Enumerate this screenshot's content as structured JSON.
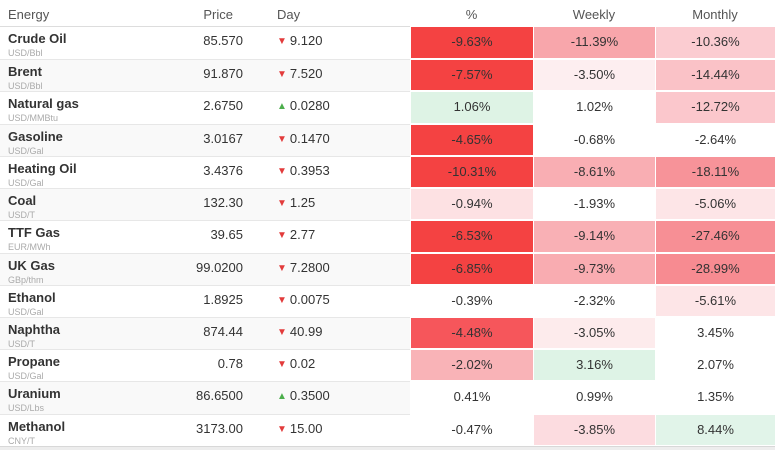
{
  "icons": {
    "up": "▲",
    "down": "▼"
  },
  "palette": {
    "full_red": "#f44242",
    "light_green": "#def3e5",
    "stripe_gray": "#f9f9f9",
    "down_triangle_red": "#e23b3b",
    "up_triangle_green": "#4cae4c"
  },
  "table": {
    "headers": [
      "Energy",
      "Price",
      "Day",
      "%",
      "Weekly",
      "Monthly"
    ],
    "rows": [
      {
        "name": "Crude Oil",
        "unit": "USD/Bbl",
        "price": "85.570",
        "day": "9.120",
        "direction": "down",
        "pct": "-9.63%",
        "weekly": "-11.39%",
        "monthly": "-10.36%",
        "colors": {
          "pct": "#f44242",
          "weekly": "#f8a6ab",
          "monthly": "#fbccd1"
        }
      },
      {
        "name": "Brent",
        "unit": "USD/Bbl",
        "price": "91.870",
        "day": "7.520",
        "direction": "down",
        "pct": "-7.57%",
        "weekly": "-3.50%",
        "monthly": "-14.44%",
        "colors": {
          "pct": "#f44242",
          "weekly": "#fdeef0",
          "monthly": "#fac2c7"
        }
      },
      {
        "name": "Natural gas",
        "unit": "USD/MMBtu",
        "price": "2.6750",
        "day": "0.0280",
        "direction": "up",
        "pct": "1.06%",
        "weekly": "1.02%",
        "monthly": "-12.72%",
        "colors": {
          "pct": "#def3e5",
          "weekly": "#ffffff",
          "monthly": "#fbc7cc"
        }
      },
      {
        "name": "Gasoline",
        "unit": "USD/Gal",
        "price": "3.0167",
        "day": "0.1470",
        "direction": "down",
        "pct": "-4.65%",
        "weekly": "-0.68%",
        "monthly": "-2.64%",
        "colors": {
          "pct": "#f44242",
          "weekly": "#ffffff",
          "monthly": "#ffffff"
        }
      },
      {
        "name": "Heating Oil",
        "unit": "USD/Gal",
        "price": "3.4376",
        "day": "0.3953",
        "direction": "down",
        "pct": "-10.31%",
        "weekly": "-8.61%",
        "monthly": "-18.11%",
        "colors": {
          "pct": "#f44242",
          "weekly": "#f9aeb3",
          "monthly": "#f79399"
        }
      },
      {
        "name": "Coal",
        "unit": "USD/T",
        "price": "132.30",
        "day": "1.25",
        "direction": "down",
        "pct": "-0.94%",
        "weekly": "-1.93%",
        "monthly": "-5.06%",
        "colors": {
          "pct": "#fde1e3",
          "weekly": "#ffffff",
          "monthly": "#fde5e7"
        }
      },
      {
        "name": "TTF Gas",
        "unit": "EUR/MWh",
        "price": "39.65",
        "day": "2.77",
        "direction": "down",
        "pct": "-6.53%",
        "weekly": "-9.14%",
        "monthly": "-27.46%",
        "colors": {
          "pct": "#f44242",
          "weekly": "#f9b0b5",
          "monthly": "#f78f95"
        }
      },
      {
        "name": "UK Gas",
        "unit": "GBp/thm",
        "price": "99.0200",
        "day": "7.2800",
        "direction": "down",
        "pct": "-6.85%",
        "weekly": "-9.73%",
        "monthly": "-28.99%",
        "colors": {
          "pct": "#f44242",
          "weekly": "#f9acb1",
          "monthly": "#f78b91"
        }
      },
      {
        "name": "Ethanol",
        "unit": "USD/Gal",
        "price": "1.8925",
        "day": "0.0075",
        "direction": "down",
        "pct": "-0.39%",
        "weekly": "-2.32%",
        "monthly": "-5.61%",
        "colors": {
          "pct": "#ffffff",
          "weekly": "#ffffff",
          "monthly": "#fde5e7"
        }
      },
      {
        "name": "Naphtha",
        "unit": "USD/T",
        "price": "874.44",
        "day": "40.99",
        "direction": "down",
        "pct": "-4.48%",
        "weekly": "-3.05%",
        "monthly": "3.45%",
        "colors": {
          "pct": "#f6565b",
          "weekly": "#fdebec",
          "monthly": "#ffffff"
        }
      },
      {
        "name": "Propane",
        "unit": "USD/Gal",
        "price": "0.78",
        "day": "0.02",
        "direction": "down",
        "pct": "-2.02%",
        "weekly": "3.16%",
        "monthly": "2.07%",
        "colors": {
          "pct": "#f9b3b7",
          "weekly": "#def3e6",
          "monthly": "#ffffff"
        }
      },
      {
        "name": "Uranium",
        "unit": "USD/Lbs",
        "price": "86.6500",
        "day": "0.3500",
        "direction": "up",
        "pct": "0.41%",
        "weekly": "0.99%",
        "monthly": "1.35%",
        "colors": {
          "pct": "#ffffff",
          "weekly": "#ffffff",
          "monthly": "#ffffff"
        }
      },
      {
        "name": "Methanol",
        "unit": "CNY/T",
        "price": "3173.00",
        "day": "15.00",
        "direction": "down",
        "pct": "-0.47%",
        "weekly": "-3.85%",
        "monthly": "8.44%",
        "colors": {
          "pct": "#ffffff",
          "weekly": "#fcdce0",
          "monthly": "#e1f4e9"
        }
      }
    ]
  }
}
